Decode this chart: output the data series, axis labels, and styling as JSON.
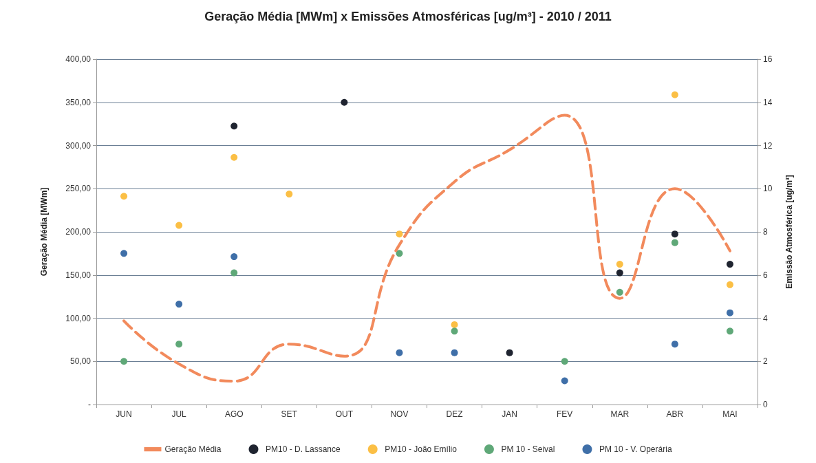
{
  "chart_data": {
    "type": "line",
    "title": "Geração Média [MWm] x Emissões Atmosféricas [ug/m³] - 2010 / 2011",
    "ylabel": "Geração Média [MWm]",
    "y2label": "Emissão Atmosférica [ug/m³]",
    "categories": [
      "JUN",
      "JUL",
      "AGO",
      "SET",
      "OUT",
      "NOV",
      "DEZ",
      "JAN",
      "FEV",
      "MAR",
      "ABR",
      "MAI"
    ],
    "series": [
      {
        "name": "Geração Média",
        "marker": "none",
        "color": "#f28a5c",
        "values": [
          97,
          47,
          27,
          70,
          56,
          185,
          258,
          295,
          335,
          123,
          250,
          178
        ]
      },
      {
        "name": "PM10 - D. Lassance",
        "type": "scatter",
        "marker": "circle",
        "axis": "y2",
        "color": "#1f2430",
        "values": [
          null,
          null,
          12.9,
          null,
          14.0,
          null,
          null,
          2.4,
          null,
          6.1,
          7.9,
          6.5
        ]
      },
      {
        "name": "PM10 - João Emílio",
        "type": "scatter",
        "marker": "circle",
        "axis": "y2",
        "color": "#fbbf45",
        "values": [
          9.65,
          8.3,
          11.45,
          9.75,
          null,
          7.9,
          3.7,
          null,
          null,
          6.5,
          14.35,
          5.55
        ]
      },
      {
        "name": "PM 10 - Seival",
        "type": "scatter",
        "marker": "circle",
        "axis": "y2",
        "color": "#5fa878",
        "values": [
          2.0,
          2.8,
          6.1,
          null,
          null,
          7.0,
          3.4,
          null,
          2.0,
          5.2,
          7.5,
          3.4
        ]
      },
      {
        "name": "PM 10 - V. Operária",
        "type": "scatter",
        "marker": "circle",
        "axis": "y2",
        "color": "#3f6fa8",
        "values": [
          7.0,
          4.65,
          6.85,
          null,
          null,
          2.4,
          2.4,
          null,
          1.1,
          null,
          2.8,
          4.25
        ]
      }
    ],
    "ylim": [
      0,
      400
    ],
    "yticks": [
      {
        "value": 0,
        "label": "-"
      },
      {
        "value": 50,
        "label": "50,00"
      },
      {
        "value": 100,
        "label": "100,00"
      },
      {
        "value": 150,
        "label": "150,00"
      },
      {
        "value": 200,
        "label": "200,00"
      },
      {
        "value": 250,
        "label": "250,00"
      },
      {
        "value": 300,
        "label": "300,00"
      },
      {
        "value": 350,
        "label": "350,00"
      },
      {
        "value": 400,
        "label": "400,00"
      }
    ],
    "y2lim": [
      0,
      16
    ],
    "y2ticks": [
      0,
      2,
      4,
      6,
      8,
      10,
      12,
      14,
      16
    ],
    "grid": "y",
    "legend": "bottom",
    "line_style": "dashed"
  }
}
